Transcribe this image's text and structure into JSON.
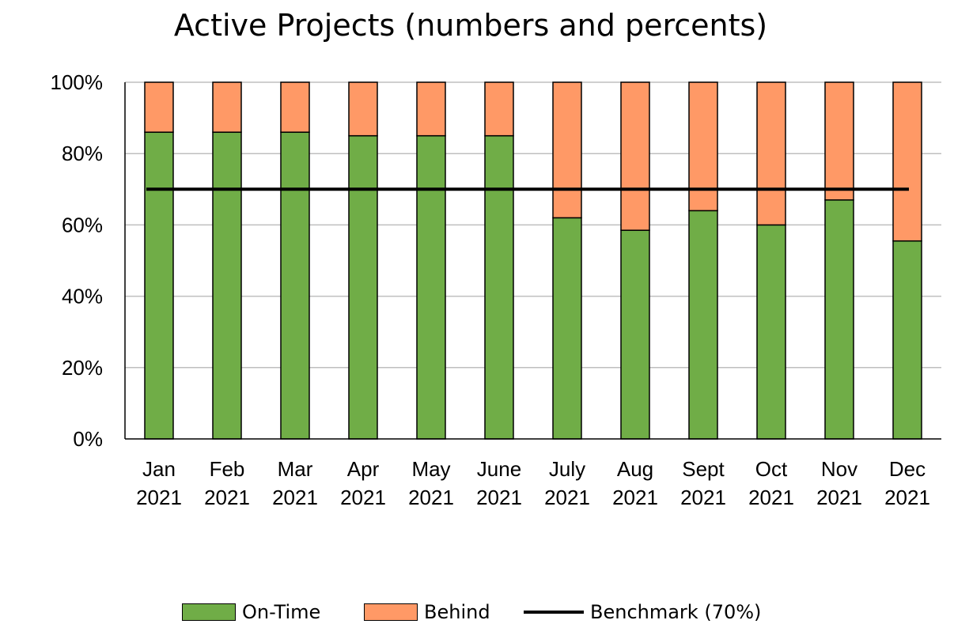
{
  "chart_data": {
    "type": "bar",
    "stacked": true,
    "title": "Active Projects (numbers and percents)",
    "categories": [
      [
        "Jan",
        "2021"
      ],
      [
        "Feb",
        "2021"
      ],
      [
        "Mar",
        "2021"
      ],
      [
        "Apr",
        "2021"
      ],
      [
        "May",
        "2021"
      ],
      [
        "June",
        "2021"
      ],
      [
        "July",
        "2021"
      ],
      [
        "Aug",
        "2021"
      ],
      [
        "Sept",
        "2021"
      ],
      [
        "Oct",
        "2021"
      ],
      [
        "Nov",
        "2021"
      ],
      [
        "Dec",
        "2021"
      ]
    ],
    "series": [
      {
        "name": "On-Time",
        "color": "#70AD47",
        "values": [
          86,
          86,
          86,
          85,
          85,
          85,
          62,
          58.5,
          64,
          60,
          67,
          55.5
        ]
      },
      {
        "name": "Behind",
        "color": "#FF9966",
        "values": [
          14,
          14,
          14,
          15,
          15,
          15,
          38,
          41.5,
          36,
          40,
          33,
          44.5
        ]
      }
    ],
    "benchmark": {
      "name": "Benchmark (70%)",
      "value": 70,
      "color": "#000000"
    },
    "ylim": [
      0,
      100
    ],
    "yticks": [
      "0%",
      "20%",
      "40%",
      "60%",
      "80%",
      "100%"
    ],
    "ytick_values": [
      0,
      20,
      40,
      60,
      80,
      100
    ],
    "grid": true,
    "legend_position": "bottom"
  }
}
